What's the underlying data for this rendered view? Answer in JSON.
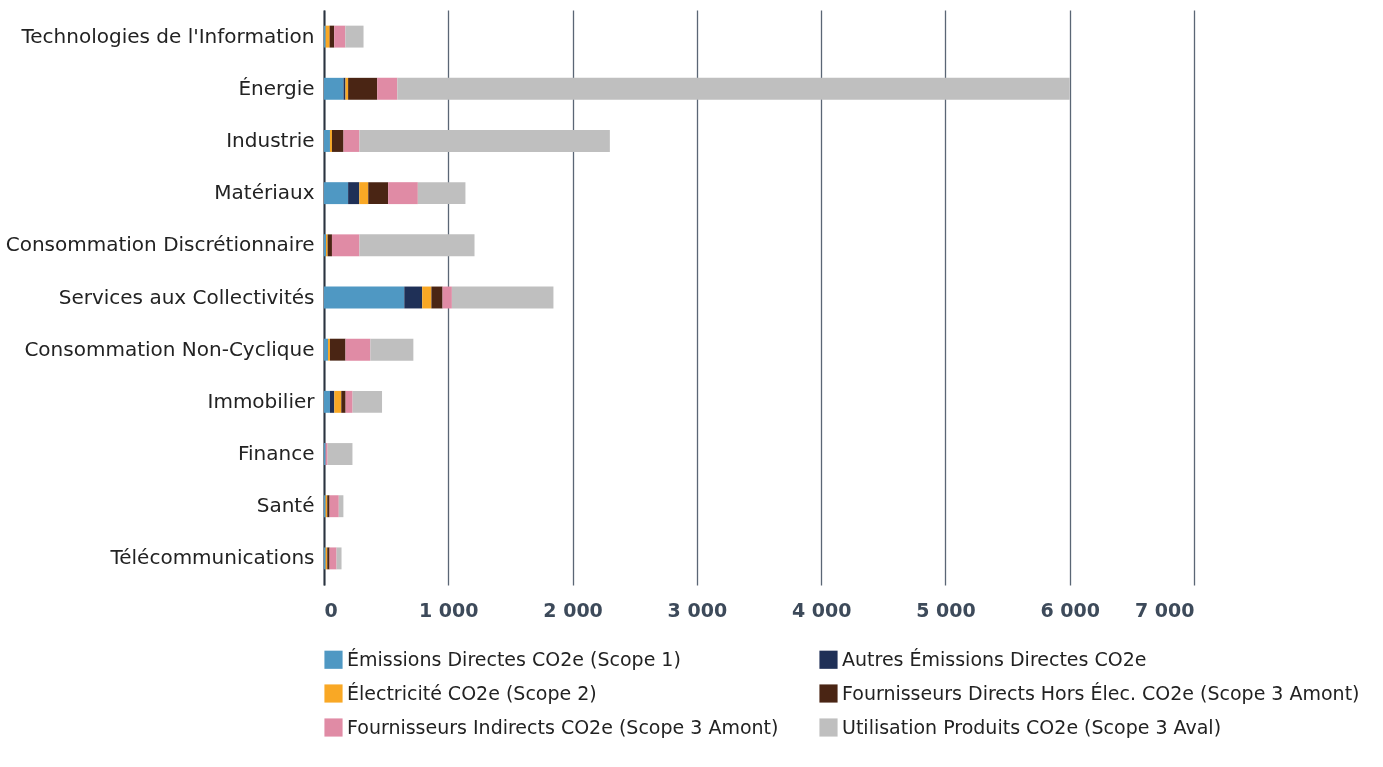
{
  "chart_data": {
    "type": "bar",
    "orientation": "horizontal",
    "stacked": true,
    "categories": [
      "Technologies de l'Information",
      "Énergie",
      "Industrie",
      "Matériaux",
      "Consommation Discrétionnaire",
      "Services aux Collectivités",
      "Consommation Non-Cyclique",
      "Immobilier",
      "Finance",
      "Santé",
      "Télécommunications"
    ],
    "series": [
      {
        "name": "Émissions Directes CO2e (Scope 1)",
        "color": "#4f98c3",
        "values": [
          13,
          157,
          48,
          194,
          16,
          646,
          32,
          48,
          13,
          13,
          13
        ]
      },
      {
        "name": "Autres Émissions Directes CO2e",
        "color": "#1f3057",
        "values": [
          0,
          16,
          0,
          90,
          0,
          144,
          0,
          35,
          0,
          0,
          0
        ]
      },
      {
        "name": "Électricité CO2e (Scope 2)",
        "color": "#f9a825",
        "values": [
          32,
          21,
          16,
          72,
          13,
          74,
          16,
          56,
          0,
          13,
          13
        ]
      },
      {
        "name": "Fournisseurs Directs Hors Élec. CO2e (Scope 3 Amont)",
        "color": "#4a2514",
        "values": [
          37,
          234,
          93,
          160,
          35,
          90,
          125,
          35,
          0,
          19,
          19
        ]
      },
      {
        "name": "Fournisseurs Indirects CO2e (Scope 3 Amont)",
        "color": "#e08ba5",
        "values": [
          90,
          162,
          128,
          239,
          221,
          75,
          200,
          56,
          16,
          74,
          56
        ]
      },
      {
        "name": "Utilisation Produits CO2e (Scope 3 Aval)",
        "color": "#bfbfbf",
        "values": [
          146,
          5410,
          2015,
          383,
          926,
          817,
          346,
          237,
          200,
          37,
          40
        ]
      }
    ],
    "xlim": [
      0,
      7000
    ],
    "xticks": [
      0,
      {
        "value": 1000,
        "label": "1 000"
      },
      {
        "value": 2000,
        "label": "2 000"
      },
      {
        "value": 3000,
        "label": "3 000"
      },
      {
        "value": 4000,
        "label": "4 000"
      },
      {
        "value": 5000,
        "label": "5 000"
      },
      {
        "value": 6000,
        "label": "6 000"
      },
      {
        "value": 7000,
        "label": "7 000"
      }
    ],
    "grid": "x",
    "legend": "bottom"
  }
}
